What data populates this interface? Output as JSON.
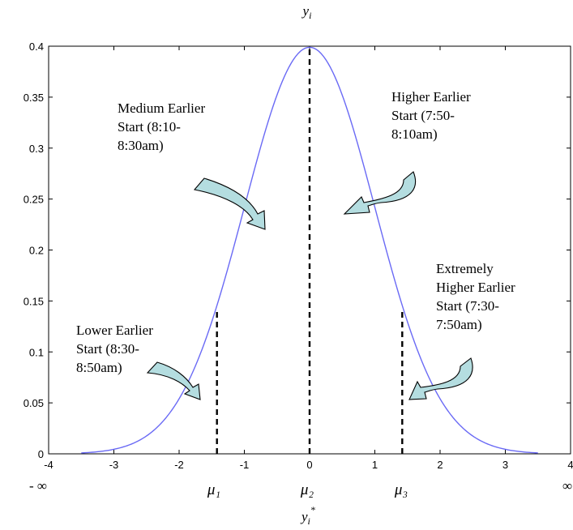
{
  "chart_data": {
    "type": "line",
    "title": "",
    "xlabel": "",
    "ylabel": "",
    "xlim": [
      -4,
      4
    ],
    "ylim": [
      0,
      0.4
    ],
    "xticks": [
      "-4",
      "-3",
      "-2",
      "-1",
      "0",
      "1",
      "2",
      "3",
      "4"
    ],
    "yticks": [
      "0",
      "0.05",
      "0.1",
      "0.15",
      "0.2",
      "0.25",
      "0.3",
      "0.35",
      "0.4"
    ],
    "series": [
      {
        "distribution": "standard normal density",
        "x_range": [
          -3.5,
          3.5
        ],
        "color": "#6a6af5"
      }
    ],
    "thresholds": [
      {
        "x": -1.42,
        "height": 0.14
      },
      {
        "x": 0.0,
        "height": 0.4
      },
      {
        "x": 1.42,
        "height": 0.14
      }
    ],
    "threshold_labels": [
      "μ₁",
      "μ₂",
      "μ₃"
    ],
    "top_label_base": "y",
    "top_label_sub": "i",
    "bottom_label_base": "y",
    "bottom_label_sub": "i",
    "bottom_label_sup": "*",
    "neg_infinity": "- ∞",
    "pos_infinity": "∞",
    "annotations": [
      {
        "lines": [
          "Medium Earlier",
          "Start (8:10-",
          "8:30am)"
        ]
      },
      {
        "lines": [
          "Higher Earlier",
          "Start (7:50-",
          "8:10am)"
        ]
      },
      {
        "lines": [
          "Extremely",
          "Higher Earlier",
          "Start (7:30-",
          "7:50am)"
        ]
      },
      {
        "lines": [
          "Lower Earlier",
          "Start (8:30-",
          "8:50am)"
        ]
      }
    ],
    "arrow_color": "#b4dde0"
  }
}
